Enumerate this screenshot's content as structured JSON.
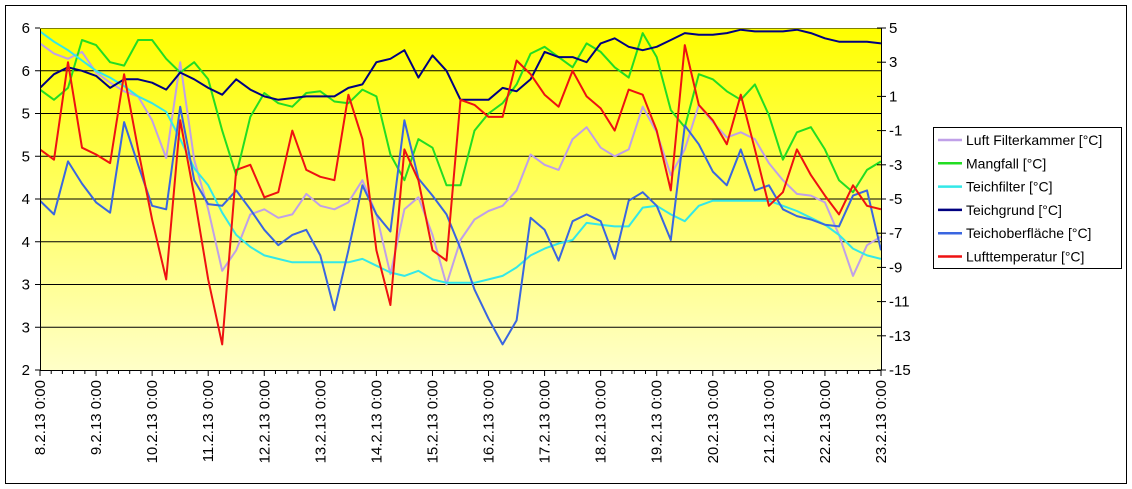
{
  "chart_data": {
    "type": "line",
    "title": "",
    "xlabel": "",
    "ylabel": "",
    "grid": true,
    "legend_position": "right",
    "background": {
      "top": "#ffff00",
      "bottom": "#ffffc8"
    },
    "left_axis": {
      "range": [
        2,
        6
      ],
      "tick_labels": [
        "6",
        "6",
        "5",
        "5",
        "4",
        "4",
        "3",
        "3",
        "2"
      ]
    },
    "right_axis": {
      "range": [
        -15,
        5
      ],
      "tick_labels": [
        "5",
        "3",
        "1",
        "-1",
        "-3",
        "-5",
        "-7",
        "-9",
        "-11",
        "-13",
        "-15"
      ]
    },
    "x_tick_labels": [
      "8.2.13 0:00",
      "9.2.13 0:00",
      "10.2.13 0:00",
      "11.2.13 0:00",
      "12.2.13 0:00",
      "13.2.13 0:00",
      "14.2.13 0:00",
      "15.2.13 0:00",
      "16.2.13 0:00",
      "17.2.13 0:00",
      "18.2.13 0:00",
      "19.2.13 0:00",
      "20.2.13 0:00",
      "21.2.13 0:00",
      "22.2.13 0:00",
      "23.2.13 0:00"
    ],
    "x": [
      "8.2.13 0:00",
      "8.2.13 6:00",
      "8.2.13 12:00",
      "8.2.13 18:00",
      "9.2.13 0:00",
      "9.2.13 6:00",
      "9.2.13 12:00",
      "9.2.13 18:00",
      "10.2.13 0:00",
      "10.2.13 6:00",
      "10.2.13 12:00",
      "10.2.13 18:00",
      "11.2.13 0:00",
      "11.2.13 6:00",
      "11.2.13 12:00",
      "11.2.13 18:00",
      "12.2.13 0:00",
      "12.2.13 6:00",
      "12.2.13 12:00",
      "12.2.13 18:00",
      "13.2.13 0:00",
      "13.2.13 6:00",
      "13.2.13 12:00",
      "13.2.13 18:00",
      "14.2.13 0:00",
      "14.2.13 6:00",
      "14.2.13 12:00",
      "14.2.13 18:00",
      "15.2.13 0:00",
      "15.2.13 6:00",
      "15.2.13 12:00",
      "15.2.13 18:00",
      "16.2.13 0:00",
      "16.2.13 6:00",
      "16.2.13 12:00",
      "16.2.13 18:00",
      "17.2.13 0:00",
      "17.2.13 6:00",
      "17.2.13 12:00",
      "17.2.13 18:00",
      "18.2.13 0:00",
      "18.2.13 6:00",
      "18.2.13 12:00",
      "18.2.13 18:00",
      "19.2.13 0:00",
      "19.2.13 6:00",
      "19.2.13 12:00",
      "19.2.13 18:00",
      "20.2.13 0:00",
      "20.2.13 6:00",
      "20.2.13 12:00",
      "20.2.13 18:00",
      "21.2.13 0:00",
      "21.2.13 6:00",
      "21.2.13 12:00",
      "21.2.13 18:00",
      "22.2.13 0:00",
      "22.2.13 6:00",
      "22.2.13 12:00",
      "22.2.13 18:00",
      "23.2.13 0:00"
    ],
    "series": [
      {
        "name": "Luft Filterkammer [°C]",
        "color": "#c0a0e8",
        "axis": "right",
        "values": [
          4.1,
          3.5,
          3.2,
          3.6,
          2.4,
          1.8,
          1.3,
          1.0,
          -0.4,
          -2.6,
          3.0,
          -2.7,
          -5.6,
          -9.2,
          -8.0,
          -5.9,
          -5.6,
          -6.1,
          -5.9,
          -4.7,
          -5.4,
          -5.6,
          -5.2,
          -3.9,
          -5.9,
          -9.4,
          -5.6,
          -4.9,
          -7.1,
          -10.0,
          -7.4,
          -6.2,
          -5.7,
          -5.4,
          -4.5,
          -2.4,
          -3.0,
          -3.3,
          -1.5,
          -0.8,
          -2.0,
          -2.5,
          -2.1,
          0.4,
          -1.1,
          -3.6,
          -2.1,
          0.5,
          -0.5,
          -1.4,
          -1.1,
          -1.5,
          -2.9,
          -3.9,
          -4.7,
          -4.8,
          -5.2,
          -7.1,
          -9.5,
          -7.7,
          -7.2
        ]
      },
      {
        "name": "Mangfall [°C]",
        "color": "#22dd22",
        "axis": "right",
        "values": [
          1.4,
          0.8,
          1.5,
          4.3,
          4.0,
          3.0,
          2.8,
          4.3,
          4.3,
          3.2,
          2.4,
          3.0,
          2.0,
          -1.0,
          -3.6,
          -0.2,
          1.2,
          0.6,
          0.4,
          1.2,
          1.3,
          0.7,
          0.6,
          1.4,
          1.0,
          -2.4,
          -3.9,
          -1.5,
          -2.0,
          -4.2,
          -4.2,
          -1.0,
          0.0,
          0.6,
          1.7,
          3.5,
          3.9,
          3.3,
          2.7,
          4.1,
          3.6,
          2.7,
          2.1,
          4.7,
          3.3,
          0.2,
          -0.8,
          2.3,
          2.0,
          1.3,
          0.8,
          1.7,
          -0.1,
          -2.7,
          -1.1,
          -0.8,
          -2.1,
          -3.9,
          -4.6,
          -3.3,
          -2.8
        ]
      },
      {
        "name": "Teichfilter [°C]",
        "color": "#33e8e8",
        "axis": "right",
        "values": [
          4.8,
          4.2,
          3.7,
          3.1,
          2.5,
          2.1,
          1.6,
          1.0,
          0.6,
          0.1,
          -1.5,
          -3.2,
          -4.2,
          -5.8,
          -7.1,
          -7.8,
          -8.3,
          -8.5,
          -8.7,
          -8.7,
          -8.7,
          -8.7,
          -8.7,
          -8.5,
          -8.9,
          -9.3,
          -9.5,
          -9.2,
          -9.7,
          -9.9,
          -9.9,
          -9.9,
          -9.7,
          -9.5,
          -9.0,
          -8.3,
          -7.9,
          -7.6,
          -7.4,
          -6.4,
          -6.5,
          -6.6,
          -6.6,
          -5.5,
          -5.4,
          -5.9,
          -6.3,
          -5.4,
          -5.1,
          -5.1,
          -5.1,
          -5.1,
          -5.1,
          -5.4,
          -5.7,
          -6.1,
          -6.5,
          -7.1,
          -7.9,
          -8.3,
          -8.5
        ]
      },
      {
        "name": "Teichgrund [°C]",
        "color": "#000080",
        "axis": "right",
        "values": [
          1.5,
          2.3,
          2.7,
          2.5,
          2.2,
          1.5,
          2.0,
          2.0,
          1.8,
          1.4,
          2.4,
          2.0,
          1.5,
          1.1,
          2.0,
          1.4,
          1.0,
          0.8,
          0.9,
          1.0,
          1.0,
          1.0,
          1.5,
          1.7,
          3.0,
          3.2,
          3.7,
          2.1,
          3.4,
          2.5,
          0.8,
          0.8,
          0.8,
          1.5,
          1.3,
          2.0,
          3.6,
          3.3,
          3.3,
          3.0,
          4.1,
          4.4,
          3.9,
          3.7,
          3.9,
          4.3,
          4.7,
          4.6,
          4.6,
          4.7,
          4.9,
          4.8,
          4.8,
          4.8,
          4.9,
          4.7,
          4.4,
          4.2,
          4.2,
          4.2,
          4.1
        ]
      },
      {
        "name": "Teichoberfläche [°C]",
        "color": "#3a66e0",
        "axis": "right",
        "values": [
          -5.1,
          -5.9,
          -2.8,
          -4.1,
          -5.2,
          -5.8,
          -0.5,
          -3.0,
          -5.4,
          -5.6,
          0.4,
          -3.9,
          -5.3,
          -5.4,
          -4.5,
          -5.6,
          -6.8,
          -7.7,
          -7.1,
          -6.8,
          -8.3,
          -11.5,
          -8.0,
          -4.2,
          -5.9,
          -6.9,
          -0.4,
          -3.8,
          -4.8,
          -5.9,
          -7.9,
          -10.3,
          -12.0,
          -13.5,
          -12.1,
          -6.1,
          -6.8,
          -8.6,
          -6.3,
          -5.9,
          -6.3,
          -8.5,
          -5.1,
          -4.6,
          -5.4,
          -7.4,
          -0.7,
          -1.8,
          -3.4,
          -4.2,
          -2.1,
          -4.5,
          -4.2,
          -5.6,
          -6.0,
          -6.2,
          -6.5,
          -6.6,
          -4.8,
          -4.5,
          -8.0
        ]
      },
      {
        "name": "Lufttemperatur [°C]",
        "color": "#ee1111",
        "axis": "right",
        "values": [
          -2.1,
          -2.7,
          3.0,
          -2.0,
          -2.4,
          -2.9,
          2.3,
          -2.1,
          -6.2,
          -9.7,
          -0.4,
          -4.8,
          -9.7,
          -13.5,
          -3.3,
          -3.0,
          -4.9,
          -4.6,
          -1.0,
          -3.3,
          -3.7,
          -3.9,
          1.1,
          -1.5,
          -8.0,
          -11.2,
          -2.1,
          -3.9,
          -8.0,
          -8.6,
          0.8,
          0.5,
          -0.2,
          -0.2,
          3.1,
          2.3,
          1.1,
          0.4,
          2.5,
          1.0,
          0.3,
          -1.0,
          1.4,
          1.1,
          -1.0,
          -4.5,
          4.0,
          0.5,
          -0.4,
          -1.8,
          1.1,
          -2.1,
          -5.4,
          -4.6,
          -2.1,
          -3.6,
          -4.8,
          -5.9,
          -4.2,
          -5.4,
          -5.6
        ]
      }
    ]
  }
}
